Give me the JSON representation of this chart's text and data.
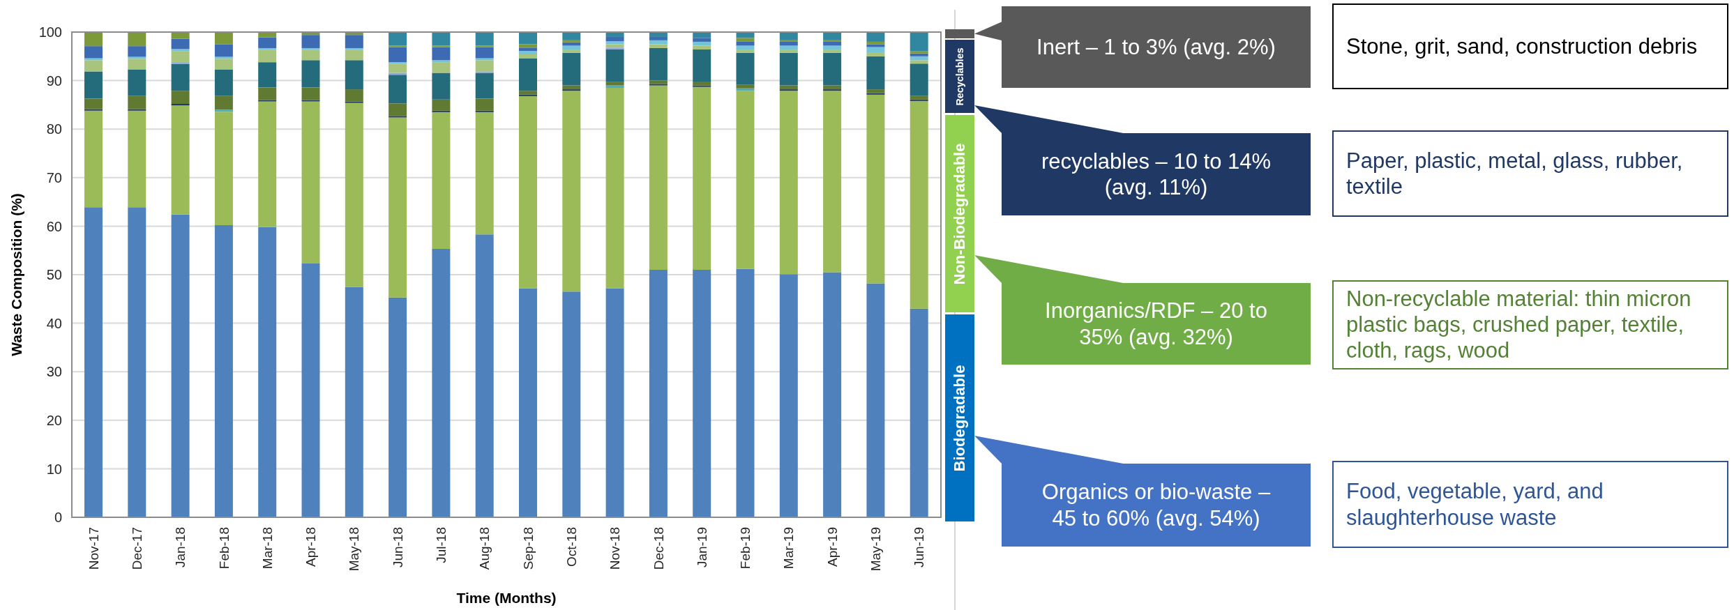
{
  "chart_data": {
    "type": "bar",
    "xlabel": "Time (Months)",
    "ylabel": "Waste Composition (%)",
    "categories": [
      "Nov-17",
      "Dec-17",
      "Jan-18",
      "Feb-18",
      "Mar-18",
      "Apr-18",
      "May-18",
      "Jun-18",
      "Jul-18",
      "Aug-18",
      "Sep-18",
      "Oct-18",
      "Nov-18",
      "Dec-18",
      "Jan-19",
      "Feb-19",
      "Mar-19",
      "Apr-19",
      "May-19",
      "Jun-19"
    ],
    "series": [
      {
        "color": "#4f81bd",
        "values": [
          63.9,
          63.9,
          62.4,
          60.2,
          59.8,
          52.3,
          47.5,
          45.3,
          55.3,
          58.3,
          47.2,
          46.5,
          47.2,
          51.0,
          51.0,
          51.2,
          50.1,
          50.5,
          48.2,
          43.0
        ]
      },
      {
        "color": "#9bbb59",
        "values": [
          19.9,
          19.9,
          22.5,
          23.4,
          25.9,
          33.4,
          37.9,
          37.1,
          28.2,
          25.2,
          39.6,
          41.4,
          41.3,
          38.0,
          37.7,
          36.7,
          37.8,
          37.4,
          38.9,
          42.8
        ]
      },
      {
        "color": "#1f3864",
        "values": [
          0.3,
          0.3,
          0.3,
          null,
          0.3,
          0.3,
          0.3,
          0.3,
          0.3,
          0.3,
          0.3,
          0.3,
          null,
          0.3,
          0.3,
          null,
          0.3,
          0.3,
          0.3,
          0.3
        ]
      },
      {
        "color": "#4bacc6",
        "values": [
          null,
          null,
          null,
          0.4,
          null,
          null,
          null,
          null,
          null,
          null,
          null,
          null,
          0.5,
          null,
          null,
          0.5,
          null,
          null,
          null,
          null
        ]
      },
      {
        "color": "#617a32",
        "values": [
          2.2,
          2.7,
          2.7,
          2.8,
          2.6,
          2.6,
          2.5,
          2.6,
          2.3,
          2.5,
          0.8,
          0.8,
          0.7,
          0.7,
          0.8,
          0.7,
          0.8,
          0.8,
          0.8,
          0.7
        ]
      },
      {
        "color": "#246b7b",
        "values": [
          5.6,
          5.5,
          5.5,
          5.5,
          5.2,
          5.6,
          6.0,
          5.9,
          5.5,
          5.3,
          6.7,
          6.7,
          6.7,
          6.7,
          6.6,
          6.6,
          6.7,
          6.7,
          6.8,
          6.7
        ]
      },
      {
        "color": "#8ea9db",
        "values": [
          null,
          null,
          0.4,
          null,
          null,
          null,
          null,
          0.4,
          null,
          0.3,
          null,
          null,
          0.4,
          null,
          null,
          null,
          null,
          null,
          null,
          null
        ]
      },
      {
        "color": "#a9c47c",
        "values": [
          2.3,
          2.2,
          2.3,
          2.2,
          2.5,
          2.1,
          2.1,
          1.9,
          2.2,
          2.3,
          0.8,
          0.7,
          0.7,
          0.8,
          0.8,
          0.7,
          0.7,
          0.7,
          0.7,
          0.7
        ]
      },
      {
        "color": "#76c4da",
        "values": [
          0.4,
          0.4,
          0.4,
          0.4,
          0.4,
          0.4,
          0.4,
          0.3,
          0.4,
          0.4,
          0.7,
          0.8,
          0.6,
          0.8,
          0.8,
          0.8,
          0.8,
          0.8,
          1.2,
          0.8
        ]
      },
      {
        "color": "#3c6bb3",
        "values": [
          2.5,
          2.2,
          2.1,
          2.6,
          2.2,
          2.7,
          2.7,
          3.1,
          2.7,
          2.3,
          0.7,
          0.7,
          0.9,
          0.7,
          0.8,
          0.8,
          0.8,
          0.8,
          0.6,
          0.6
        ]
      },
      {
        "color": "#7c9a3a",
        "values": [
          2.9,
          2.9,
          1.4,
          2.5,
          1.1,
          0.6,
          0.6,
          0.3,
          0.3,
          0.3,
          0.7,
          0.4,
          null,
          null,
          null,
          0.8,
          0.3,
          0.3,
          0.5,
          0.5
        ]
      },
      {
        "color": "#31879f",
        "values": [
          null,
          null,
          null,
          null,
          null,
          null,
          null,
          2.8,
          2.8,
          2.8,
          2.5,
          1.7,
          1.0,
          1.0,
          1.2,
          1.2,
          1.7,
          1.7,
          2.0,
          3.9
        ]
      }
    ],
    "stacked": true,
    "ylim": [
      0,
      100
    ],
    "yticks": [
      0,
      10,
      20,
      30,
      40,
      50,
      60,
      70,
      80,
      90,
      100
    ],
    "grid": "y",
    "annotations": [
      "Recyclables",
      "Non-Biodegradable",
      "Biodegradable",
      "Inert – 1 to 3% (avg. 2%)",
      "Stone, grit, sand, construction debris",
      "recyclables – 10 to 14% (avg. 11%)",
      "Paper, plastic, metal, glass, rubber, textile",
      "Inorganics/RDF – 20 to 35% (avg. 32%)",
      "Non-recyclable material: thin micron plastic bags, crushed paper, textile, cloth, rags, wood",
      "Organics or bio-waste – 45 to 60% (avg. 54%)",
      "Food, vegetable, yard, and slaughterhouse waste"
    ]
  }
}
